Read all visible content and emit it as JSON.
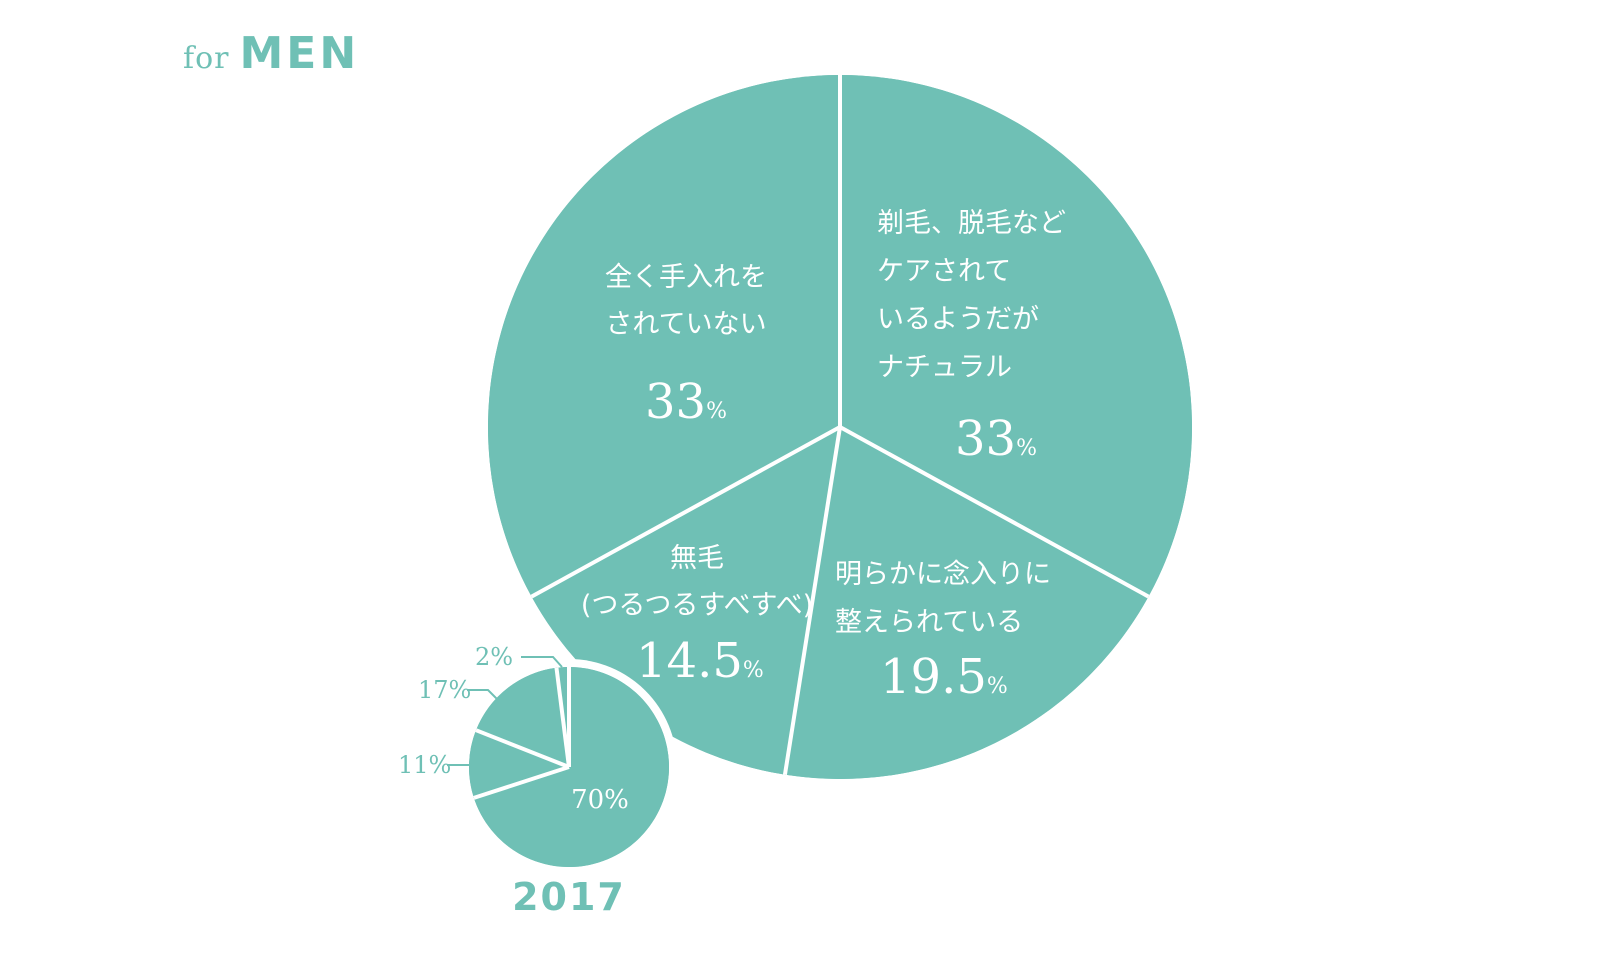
{
  "header": {
    "for": "for",
    "men": "MEN"
  },
  "colors": {
    "accent": "#6fc0b5",
    "divider": "#ffffff"
  },
  "chart_data": [
    {
      "type": "pie",
      "slices": [
        {
          "label_lines": [
            "剃毛、脱毛など",
            "ケアされて",
            "いるようだが",
            "ナチュラル"
          ],
          "value": 33,
          "value_text": "33",
          "pct_symbol": "%"
        },
        {
          "label_lines": [
            "明らかに念入りに",
            "整えられている"
          ],
          "value": 19.5,
          "value_text": "19.5",
          "pct_symbol": "%"
        },
        {
          "label_lines": [
            "無毛",
            "(つるつるすべすべ)"
          ],
          "value": 14.5,
          "value_text": "14.5",
          "pct_symbol": "%"
        },
        {
          "label_lines": [
            "全く手入れを",
            "されていない"
          ],
          "value": 33,
          "value_text": "33",
          "pct_symbol": "%"
        }
      ]
    },
    {
      "type": "pie",
      "title": "2017",
      "slices": [
        {
          "value": 70,
          "label": "70%"
        },
        {
          "value": 11,
          "label": "11%"
        },
        {
          "value": 17,
          "label": "17%"
        },
        {
          "value": 2,
          "label": "2%"
        }
      ]
    }
  ]
}
